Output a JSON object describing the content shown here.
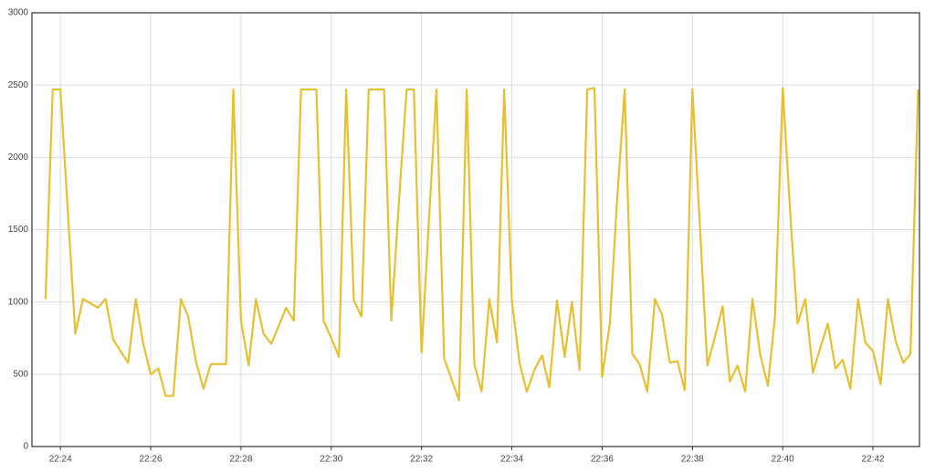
{
  "chart_data": {
    "type": "line",
    "color": "#e8bf30",
    "grid": true,
    "x": [
      23.67,
      23.83,
      24,
      24.17,
      24.33,
      24.5,
      24.67,
      24.83,
      25,
      25.17,
      25.33,
      25.5,
      25.67,
      25.83,
      26,
      26.17,
      26.33,
      26.5,
      26.67,
      26.83,
      27,
      27.17,
      27.33,
      27.5,
      27.67,
      27.83,
      28,
      28.17,
      28.33,
      28.5,
      28.67,
      28.83,
      29,
      29.17,
      29.33,
      29.5,
      29.67,
      29.83,
      30,
      30.17,
      30.33,
      30.5,
      30.67,
      30.83,
      31,
      31.17,
      31.33,
      31.5,
      31.67,
      31.83,
      32,
      32.17,
      32.33,
      32.5,
      32.67,
      32.83,
      33,
      33.17,
      33.33,
      33.5,
      33.67,
      33.83,
      34,
      34.17,
      34.33,
      34.5,
      34.67,
      34.83,
      35,
      35.17,
      35.33,
      35.5,
      35.67,
      35.83,
      36,
      36.17,
      36.33,
      36.5,
      36.67,
      36.83,
      37,
      37.17,
      37.33,
      37.5,
      37.67,
      37.83,
      38,
      38.17,
      38.33,
      38.5,
      38.67,
      38.83,
      39,
      39.17,
      39.33,
      39.5,
      39.67,
      39.83,
      40,
      40.17,
      40.33,
      40.5,
      40.67,
      40.83,
      41,
      41.17,
      41.33,
      41.5,
      41.67,
      41.83,
      42,
      42.17,
      42.33,
      42.5,
      42.67,
      42.83,
      43
    ],
    "values": [
      1020,
      2470,
      2470,
      1600,
      780,
      1020,
      990,
      960,
      1020,
      740,
      660,
      580,
      1020,
      720,
      500,
      540,
      350,
      350,
      1020,
      900,
      590,
      400,
      570,
      570,
      570,
      2470,
      870,
      560,
      1020,
      780,
      710,
      830,
      960,
      870,
      2470,
      2470,
      2470,
      870,
      750,
      620,
      2470,
      1010,
      900,
      2470,
      2470,
      2470,
      870,
      1700,
      2470,
      2470,
      650,
      1600,
      2470,
      610,
      460,
      320,
      2470,
      570,
      380,
      1020,
      720,
      2470,
      1010,
      580,
      380,
      530,
      630,
      410,
      1010,
      620,
      1000,
      530,
      2470,
      2480,
      480,
      850,
      1700,
      2470,
      640,
      570,
      380,
      1020,
      910,
      580,
      590,
      390,
      2470,
      1500,
      560,
      760,
      970,
      450,
      560,
      380,
      1020,
      640,
      420,
      900,
      2480,
      1600,
      850,
      1020,
      510,
      680,
      850,
      540,
      600,
      400,
      1020,
      720,
      660,
      430,
      1020,
      730,
      580,
      640,
      2470
    ],
    "xlim": [
      23.37,
      43.03
    ],
    "xticks": [
      {
        "value": 24,
        "label": "22:24"
      },
      {
        "value": 26,
        "label": "22:26"
      },
      {
        "value": 28,
        "label": "22:28"
      },
      {
        "value": 30,
        "label": "22:30"
      },
      {
        "value": 32,
        "label": "22:32"
      },
      {
        "value": 34,
        "label": "22:34"
      },
      {
        "value": 36,
        "label": "22:36"
      },
      {
        "value": 38,
        "label": "22:38"
      },
      {
        "value": 40,
        "label": "22:40"
      },
      {
        "value": 42,
        "label": "22:42"
      }
    ],
    "ylim": [
      0,
      3000
    ],
    "yticks": [
      0,
      500,
      1000,
      1500,
      2000,
      2500,
      3000
    ]
  }
}
